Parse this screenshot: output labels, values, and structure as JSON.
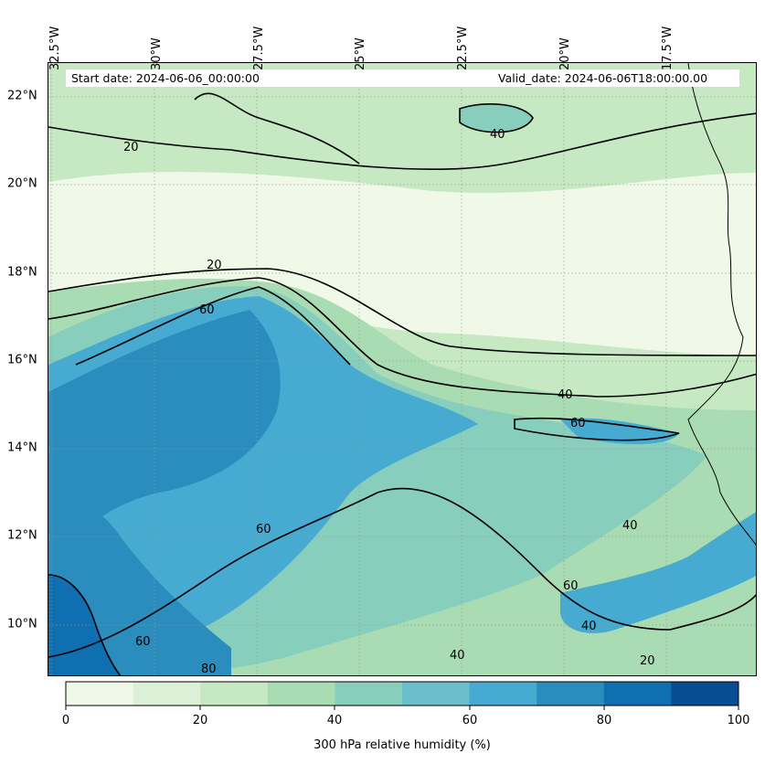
{
  "header": {
    "start_date": "Start date: 2024-06-06_00:00:00",
    "valid_date": "Valid_date: 2024-06-06T18:00:00.00"
  },
  "axes": {
    "longitudes": [
      "32.5°W",
      "30°W",
      "27.5°W",
      "25°W",
      "22.5°W",
      "20°W",
      "17.5°W"
    ],
    "latitudes": [
      "22°N",
      "20°N",
      "18°N",
      "16°N",
      "14°N",
      "12°N",
      "10°N"
    ]
  },
  "contour_labels": [
    "20",
    "40",
    "60",
    "80"
  ],
  "colorbar": {
    "title": "300 hPa relative humidity (%)",
    "ticks": [
      "0",
      "20",
      "40",
      "60",
      "80",
      "100"
    ],
    "colors": [
      "#f0f9e8",
      "#dcf0d7",
      "#c6e8c2",
      "#a9dcb3",
      "#88cebd",
      "#6bbfcc",
      "#47aad1",
      "#2b8cbe",
      "#106fb0",
      "#084d91"
    ]
  }
}
